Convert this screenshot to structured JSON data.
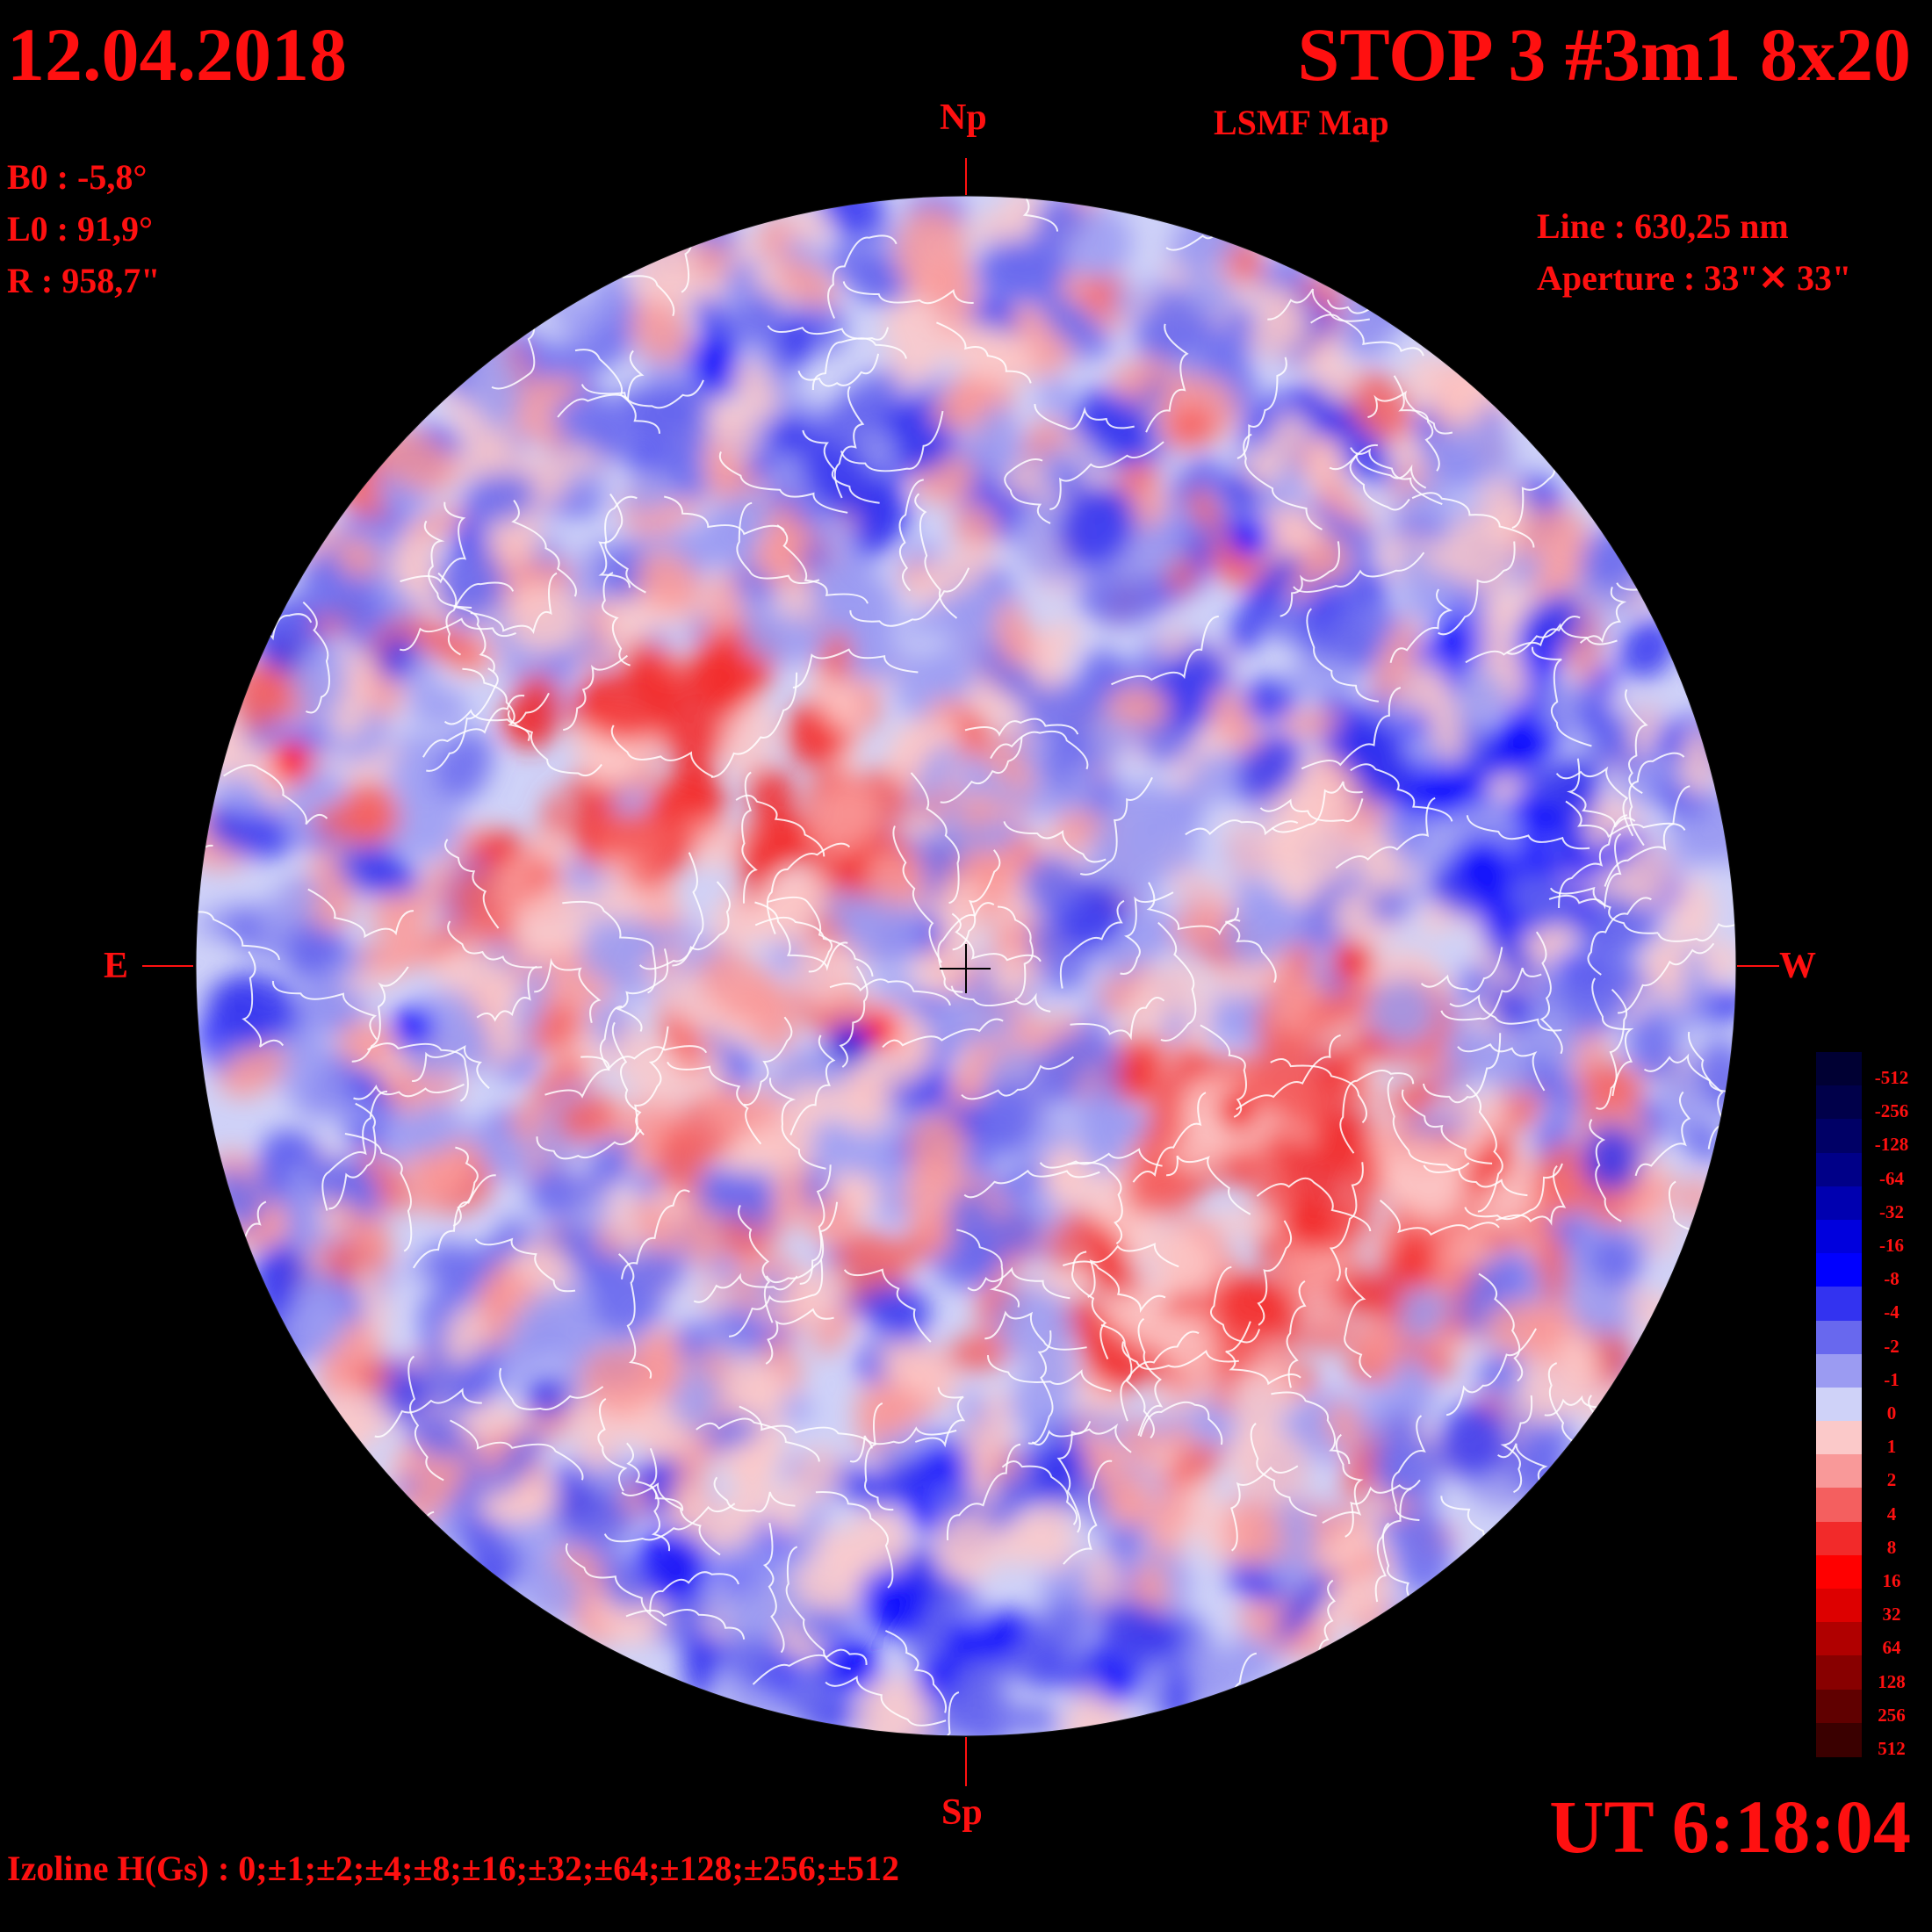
{
  "header": {
    "date": "12.04.2018",
    "title": "STOP 3 #3m1 8x20",
    "subtitle": "LSMF  Map"
  },
  "params": {
    "b0": "B0 : -5,8°",
    "l0": "L0 : 91,9°",
    "r": "R  : 958,7\""
  },
  "instrument": {
    "line": "Line :  630,25 nm",
    "aperture": "Aperture : 33\"✕ 33\""
  },
  "directions": {
    "north": "Np",
    "south": "Sp",
    "east": "E",
    "west": "W"
  },
  "time": "UT 6:18:04",
  "izoline": "Izoline H(Gs) : 0;±1;±2;±4;±8;±16;±32;±64;±128;±256;±512",
  "colorbar": {
    "levels": [
      {
        "label": "-512",
        "color": "#000033"
      },
      {
        "label": "-256",
        "color": "#00004a"
      },
      {
        "label": "-128",
        "color": "#000066"
      },
      {
        "label": "-64",
        "color": "#000088"
      },
      {
        "label": "-32",
        "color": "#0000b0"
      },
      {
        "label": "-16",
        "color": "#0000dd"
      },
      {
        "label": "-8",
        "color": "#0000ff"
      },
      {
        "label": "-4",
        "color": "#3333f0"
      },
      {
        "label": "-2",
        "color": "#6868ee"
      },
      {
        "label": "-1",
        "color": "#9b9bf2"
      },
      {
        "label": "0",
        "color": "#cfd2f8"
      },
      {
        "label": "1",
        "color": "#fbc9c9"
      },
      {
        "label": "2",
        "color": "#f99999"
      },
      {
        "label": "4",
        "color": "#f45f5f"
      },
      {
        "label": "8",
        "color": "#f22a2a"
      },
      {
        "label": "16",
        "color": "#ff0000"
      },
      {
        "label": "32",
        "color": "#dd0000"
      },
      {
        "label": "64",
        "color": "#b00000"
      },
      {
        "label": "128",
        "color": "#880000"
      },
      {
        "label": "256",
        "color": "#600000"
      },
      {
        "label": "512",
        "color": "#3a0000"
      }
    ]
  },
  "colors": {
    "text": "#ff1010",
    "background": "#000000",
    "contour": "#ffffff"
  }
}
